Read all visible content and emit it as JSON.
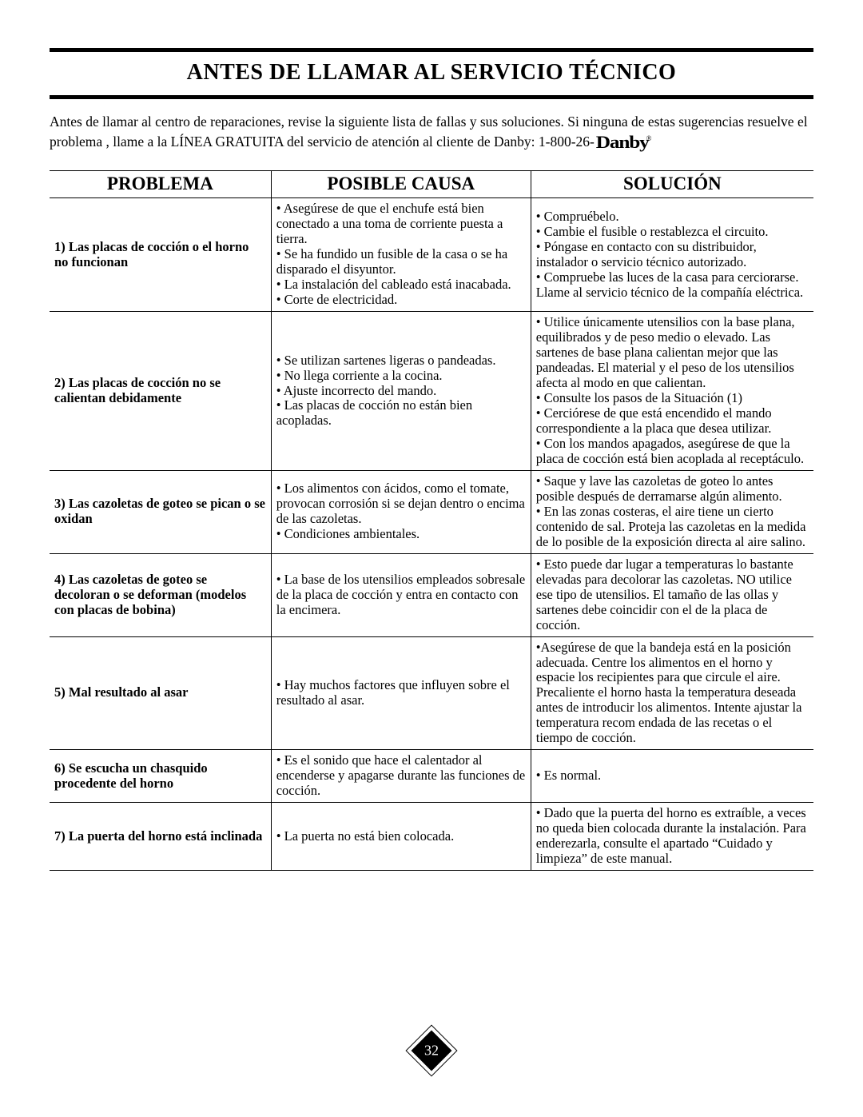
{
  "page": {
    "title": "ANTES DE LLAMAR AL SERVICIO TÉCNICO",
    "intro_part1": "Antes de llamar al centro de reparaciones, revise la siguiente lista de fallas y sus soluciones. Si ninguna de estas sugerencias resuelve el problema , llame a la LÍNEA GRATUITA  del servicio de atención al cliente de Danby: 1-800-26-",
    "brand": "Danby",
    "page_number": "32"
  },
  "table": {
    "headers": {
      "problema": "PROBLEMA",
      "causa": "POSIBLE CAUSA",
      "solucion": "SOLUCIÓN"
    },
    "rows": [
      {
        "problema": "1) Las placas de cocción o el horno no funcionan",
        "causa": "• Asegúrese de que el enchufe está bien conectado a una toma de corriente puesta a tierra.\n• Se ha fundido un fusible de la casa o se ha disparado el disyuntor.\n• La instalación del cableado está inacabada.\n• Corte de electricidad.",
        "solucion": "• Compruébelo.\n• Cambie el fusible o restablezca el circuito.\n• Póngase en contacto con su distribuidor, instalador o servicio técnico autorizado.\n• Compruebe las luces de la casa para cerciorarse. Llame al servicio técnico de la compañía eléctrica."
      },
      {
        "problema": "2) Las placas de cocción no se calientan debidamente",
        "causa": "• Se utilizan sartenes ligeras o pandeadas.\n• No llega corriente a la cocina.\n• Ajuste incorrecto del mando.\n• Las placas de cocción no están bien acopladas.",
        "solucion": "• Utilice únicamente utensilios con la base plana, equilibrados y de peso medio o elevado. Las sartenes de base plana calientan mejor que las pandeadas. El material y el peso de los utensilios afecta al modo en que calientan.\n• Consulte los pasos de la Situación (1)\n• Cerciórese de que está encendido el mando correspondiente a la placa que desea utilizar.\n• Con los mandos apagados, asegúrese de que la placa de cocción está bien acoplada al receptáculo."
      },
      {
        "problema": "3) Las cazoletas de goteo se pican o se oxidan",
        "causa": "• Los alimentos con ácidos, como el tomate, provocan corrosión si se dejan dentro o encima de las cazoletas.\n• Condiciones ambientales.",
        "solucion": "• Saque y lave las cazoletas de goteo lo antes posible después de derramarse algún alimento.\n• En las zonas costeras, el aire tiene un cierto contenido de sal. Proteja las cazoletas en la medida de lo posible de la exposición directa al aire salino."
      },
      {
        "problema": "4) Las cazoletas de goteo se decoloran o se deforman (modelos con placas de bobina)",
        "causa": "• La base de los utensilios empleados sobresale de la placa de cocción y entra en contacto con la encimera.",
        "solucion": "• Esto puede dar lugar a temperaturas lo bastante elevadas para decolorar las cazoletas. NO utilice ese tipo de utensilios. El tamaño de las ollas y sartenes debe coincidir con el de la placa de cocción."
      },
      {
        "problema": "5) Mal resultado al asar",
        "causa": "• Hay muchos factores que influyen sobre el resultado al asar.",
        "solucion": "•Asegúrese de que la bandeja está en la posición adecuada. Centre los alimentos en el horno y espacie los recipientes para que circule el aire. Precaliente el horno hasta la temperatura deseada antes de introducir los alimentos. Intente ajustar la temperatura recom endada de las recetas o el tiempo de cocción."
      },
      {
        "problema": "6) Se escucha un chasquido procedente del horno",
        "causa": "• Es el sonido que hace el calentador al encenderse y apagarse durante las funciones de cocción.",
        "solucion": "• Es normal."
      },
      {
        "problema": "7) La puerta del horno está inclinada",
        "causa": "• La puerta no está bien colocada.",
        "solucion": "• Dado que la puerta del horno es extraíble, a veces no queda bien colocada durante la instalación. Para enderezarla, consulte el apartado “Cuidado y limpieza” de este manual."
      }
    ]
  },
  "style": {
    "colors": {
      "text": "#000000",
      "background": "#ffffff",
      "rule": "#000000",
      "border": "#000000"
    },
    "fonts": {
      "base_family": "Times New Roman",
      "title_size_pt": 21,
      "header_size_pt": 17,
      "body_size_pt": 12
    }
  }
}
